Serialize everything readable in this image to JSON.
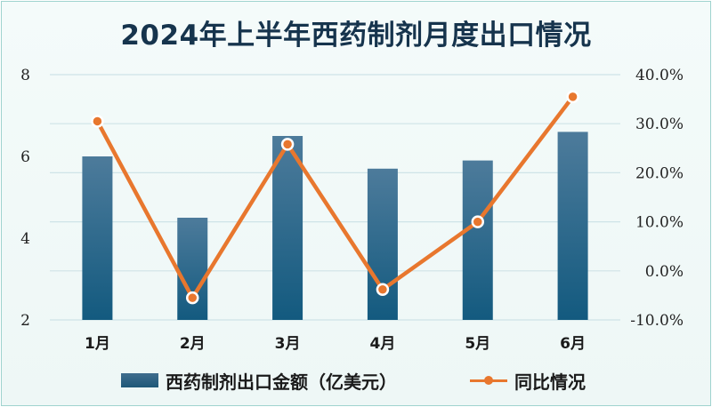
{
  "title": "2024年上半年西药制剂月度出口情况",
  "colors": {
    "bar_top": "#4d7b9b",
    "bar_bottom": "#135a7f",
    "line": "#e8772e",
    "grid": "#cfe3e7",
    "title": "#16344d",
    "frame": "#9fd3cf"
  },
  "legend": {
    "bar_label": "西药制剂出口金额（亿美元）",
    "line_label": "同比情况"
  },
  "chart_data": {
    "type": "bar",
    "title": "2024年上半年西药制剂月度出口情况",
    "categories": [
      "1月",
      "2月",
      "3月",
      "4月",
      "5月",
      "6月"
    ],
    "series": [
      {
        "name": "西药制剂出口金额（亿美元）",
        "type": "bar",
        "axis": "left",
        "values": [
          6.0,
          4.5,
          6.5,
          5.7,
          5.9,
          6.6
        ]
      },
      {
        "name": "同比情况",
        "type": "line",
        "axis": "right",
        "values": [
          30.5,
          -5.5,
          25.8,
          -3.8,
          10.0,
          35.5
        ]
      }
    ],
    "y_left": {
      "ticks": [
        "2",
        "4",
        "6",
        "8"
      ],
      "ylim": [
        2,
        8
      ]
    },
    "y_right": {
      "ticks": [
        "-10.0%",
        "0.0%",
        "10.0%",
        "20.0%",
        "30.0%",
        "40.0%"
      ],
      "ylim": [
        -10,
        40
      ]
    },
    "grid": true,
    "legend_position": "bottom"
  }
}
